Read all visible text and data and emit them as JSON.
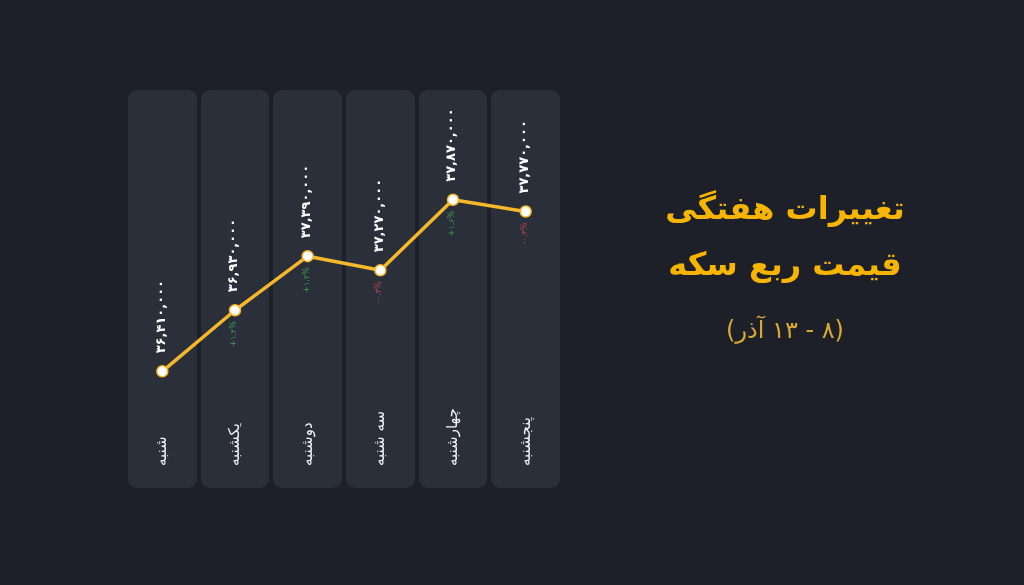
{
  "chart_data": {
    "type": "line",
    "title": "تغییرات هفتگی قیمت ربع سکه",
    "subtitle": "(۸ - ۱۳ آذر)",
    "categories": [
      "شنبه",
      "یکشنبه",
      "دوشنبه",
      "سه شنبه",
      "چهارشنبه",
      "پنجشنبه"
    ],
    "series": [
      {
        "color": "#f5b82a",
        "values": [
          36410000,
          36930000,
          37390000,
          37270000,
          37870000,
          37770000
        ],
        "value_labels": [
          "۳۶,۴۱۰,۰۰۰",
          "۳۶,۹۳۰,۰۰۰",
          "۳۷,۳۹۰,۰۰۰",
          "۳۷,۲۷۰,۰۰۰",
          "۳۷,۸۷۰,۰۰۰",
          "۳۷,۷۷۰,۰۰۰"
        ]
      }
    ],
    "annotations": [
      {
        "text": "+۱.۴%",
        "x": "یکشنبه",
        "y": 36930000
      },
      {
        "text": "+۱.۲%",
        "x": "دوشنبه",
        "y": 37390000
      },
      {
        "text": "-۰.۳%",
        "x": "سه شنبه",
        "y": 37270000
      },
      {
        "text": "+۱.۶%",
        "x": "چهارشنبه",
        "y": 37870000
      },
      {
        "text": "-۰.۳%",
        "x": "پنجشنبه",
        "y": 37770000
      }
    ],
    "marker": "circle",
    "tick_labels": "x"
  }
}
